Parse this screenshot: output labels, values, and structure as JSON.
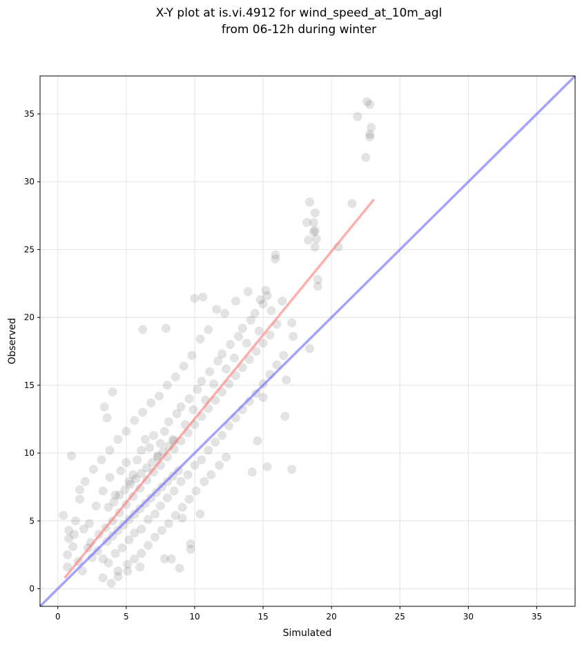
{
  "chart_data": {
    "type": "scatter",
    "title_line1": "X-Y plot at is.vi.4912 for wind_speed_at_10m_agl",
    "title_line2": "from 06-12h during winter",
    "xlabel": "Simulated",
    "ylabel": "Observed",
    "xlim": [
      -1.3,
      37.8
    ],
    "ylim": [
      -1.3,
      37.8
    ],
    "xticks": [
      0,
      5,
      10,
      15,
      20,
      25,
      30,
      35
    ],
    "yticks": [
      0,
      5,
      10,
      15,
      20,
      25,
      30,
      35
    ],
    "xtick_labels": [
      "0",
      "5",
      "10",
      "15",
      "20",
      "25",
      "30",
      "35"
    ],
    "ytick_labels": [
      "0",
      "5",
      "10",
      "15",
      "20",
      "25",
      "30",
      "35"
    ],
    "grid": true,
    "point_color": "#444444",
    "identity_line": {
      "x": [
        -1.3,
        37.8
      ],
      "y": [
        -1.3,
        37.8
      ],
      "color": "#6666ff"
    },
    "fit_line": {
      "x": [
        0.5,
        23.1
      ],
      "y": [
        0.8,
        28.7
      ],
      "color": "#ff7777"
    },
    "points": [
      [
        22.6,
        35.9
      ],
      [
        22.8,
        35.7
      ],
      [
        21.9,
        34.8
      ],
      [
        22.9,
        34.0
      ],
      [
        22.8,
        33.5
      ],
      [
        22.8,
        33.3
      ],
      [
        22.5,
        31.8
      ],
      [
        18.4,
        28.5
      ],
      [
        21.5,
        28.4
      ],
      [
        18.8,
        27.7
      ],
      [
        18.2,
        27.0
      ],
      [
        18.7,
        27.0
      ],
      [
        18.8,
        26.4
      ],
      [
        18.7,
        26.3
      ],
      [
        18.3,
        25.7
      ],
      [
        18.9,
        25.8
      ],
      [
        18.8,
        25.2
      ],
      [
        20.5,
        25.2
      ],
      [
        15.9,
        24.6
      ],
      [
        15.9,
        24.3
      ],
      [
        19.0,
        22.8
      ],
      [
        19.0,
        22.3
      ],
      [
        18.4,
        17.7
      ],
      [
        16.7,
        15.4
      ],
      [
        16.6,
        12.7
      ],
      [
        17.1,
        19.6
      ],
      [
        17.2,
        18.6
      ],
      [
        17.1,
        8.8
      ],
      [
        15.3,
        9.0
      ],
      [
        14.2,
        8.6
      ],
      [
        14.6,
        10.9
      ],
      [
        15.0,
        14.1
      ],
      [
        16.0,
        19.5
      ],
      [
        16.4,
        21.2
      ],
      [
        10.0,
        21.4
      ],
      [
        10.6,
        21.5
      ],
      [
        6.2,
        19.1
      ],
      [
        7.9,
        19.2
      ],
      [
        4.0,
        14.5
      ],
      [
        3.4,
        13.4
      ],
      [
        3.6,
        12.6
      ],
      [
        1.0,
        9.8
      ],
      [
        0.4,
        5.4
      ],
      [
        0.8,
        4.3
      ],
      [
        0.8,
        3.7
      ],
      [
        0.7,
        2.5
      ],
      [
        0.7,
        1.6
      ],
      [
        1.8,
        1.3
      ],
      [
        3.3,
        0.8
      ],
      [
        3.9,
        0.4
      ],
      [
        4.4,
        0.9
      ],
      [
        5.1,
        1.3
      ],
      [
        6.0,
        1.6
      ],
      [
        7.8,
        2.2
      ],
      [
        8.3,
        2.2
      ],
      [
        8.9,
        1.5
      ],
      [
        9.7,
        3.3
      ],
      [
        9.7,
        2.9
      ],
      [
        10.4,
        5.5
      ],
      [
        9.1,
        5.2
      ],
      [
        1.6,
        6.6
      ],
      [
        2.3,
        4.8
      ],
      [
        1.2,
        4.0
      ],
      [
        2.8,
        6.1
      ],
      [
        4.4,
        1.3
      ],
      [
        3.3,
        7.2
      ],
      [
        3.8,
        8.2
      ],
      [
        4.2,
        6.9
      ],
      [
        4.6,
        8.7
      ],
      [
        5.0,
        9.3
      ],
      [
        5.2,
        7.9
      ],
      [
        5.5,
        8.4
      ],
      [
        5.8,
        9.5
      ],
      [
        6.1,
        10.2
      ],
      [
        6.4,
        11.0
      ],
      [
        6.7,
        10.4
      ],
      [
        7.0,
        11.3
      ],
      [
        7.3,
        9.8
      ],
      [
        7.5,
        10.7
      ],
      [
        7.8,
        11.6
      ],
      [
        8.1,
        12.3
      ],
      [
        8.4,
        11.0
      ],
      [
        8.7,
        12.9
      ],
      [
        9.0,
        13.4
      ],
      [
        9.3,
        12.1
      ],
      [
        9.6,
        14.0
      ],
      [
        9.9,
        13.2
      ],
      [
        10.2,
        14.7
      ],
      [
        10.5,
        15.3
      ],
      [
        10.8,
        13.9
      ],
      [
        11.1,
        16.0
      ],
      [
        11.4,
        15.1
      ],
      [
        11.7,
        16.8
      ],
      [
        12.0,
        17.3
      ],
      [
        12.3,
        16.2
      ],
      [
        12.6,
        18.0
      ],
      [
        12.9,
        17.0
      ],
      [
        13.2,
        18.6
      ],
      [
        13.5,
        19.2
      ],
      [
        13.8,
        18.1
      ],
      [
        14.1,
        19.8
      ],
      [
        14.4,
        20.3
      ],
      [
        14.7,
        19.0
      ],
      [
        15.0,
        21.0
      ],
      [
        15.3,
        21.6
      ],
      [
        15.6,
        20.5
      ],
      [
        15.2,
        22.0
      ],
      [
        14.8,
        21.3
      ],
      [
        13.9,
        21.9
      ],
      [
        13.0,
        21.2
      ],
      [
        12.2,
        20.3
      ],
      [
        11.6,
        20.6
      ],
      [
        11.0,
        19.1
      ],
      [
        10.4,
        18.4
      ],
      [
        9.8,
        17.2
      ],
      [
        9.2,
        16.4
      ],
      [
        8.6,
        15.6
      ],
      [
        8.0,
        15.0
      ],
      [
        7.4,
        14.2
      ],
      [
        6.8,
        13.7
      ],
      [
        6.2,
        13.0
      ],
      [
        5.6,
        12.4
      ],
      [
        5.0,
        11.6
      ],
      [
        4.4,
        11.0
      ],
      [
        3.8,
        10.2
      ],
      [
        3.2,
        9.5
      ],
      [
        2.6,
        8.8
      ],
      [
        2.0,
        7.9
      ],
      [
        1.6,
        7.3
      ],
      [
        1.3,
        5.0
      ],
      [
        1.9,
        4.4
      ],
      [
        2.4,
        3.4
      ],
      [
        2.9,
        2.8
      ],
      [
        3.3,
        2.2
      ],
      [
        3.7,
        1.9
      ],
      [
        4.2,
        2.6
      ],
      [
        4.7,
        3.0
      ],
      [
        5.2,
        3.6
      ],
      [
        5.6,
        4.1
      ],
      [
        6.1,
        4.4
      ],
      [
        6.6,
        5.1
      ],
      [
        7.1,
        5.5
      ],
      [
        7.5,
        6.1
      ],
      [
        8.0,
        6.7
      ],
      [
        8.5,
        7.2
      ],
      [
        9.0,
        7.9
      ],
      [
        9.5,
        8.4
      ],
      [
        10.0,
        9.1
      ],
      [
        10.5,
        9.5
      ],
      [
        11.0,
        10.2
      ],
      [
        11.5,
        10.8
      ],
      [
        12.0,
        11.3
      ],
      [
        12.5,
        12.0
      ],
      [
        13.0,
        12.6
      ],
      [
        13.5,
        13.2
      ],
      [
        14.0,
        13.8
      ],
      [
        14.5,
        14.4
      ],
      [
        15.0,
        15.1
      ],
      [
        15.5,
        15.8
      ],
      [
        16.0,
        16.5
      ],
      [
        16.5,
        17.2
      ],
      [
        12.3,
        9.7
      ],
      [
        11.8,
        9.1
      ],
      [
        11.2,
        8.4
      ],
      [
        10.7,
        7.9
      ],
      [
        10.1,
        7.2
      ],
      [
        9.6,
        6.6
      ],
      [
        9.1,
        6.0
      ],
      [
        8.6,
        5.4
      ],
      [
        8.1,
        4.8
      ],
      [
        7.6,
        4.3
      ],
      [
        7.1,
        3.8
      ],
      [
        6.6,
        3.2
      ],
      [
        6.1,
        2.6
      ],
      [
        5.6,
        2.2
      ],
      [
        5.1,
        1.8
      ],
      [
        3.0,
        4.0
      ],
      [
        3.5,
        4.5
      ],
      [
        4.0,
        5.0
      ],
      [
        4.5,
        5.6
      ],
      [
        5.0,
        6.2
      ],
      [
        5.5,
        6.8
      ],
      [
        6.0,
        7.4
      ],
      [
        6.5,
        8.0
      ],
      [
        7.0,
        8.6
      ],
      [
        7.5,
        9.1
      ],
      [
        8.0,
        9.7
      ],
      [
        8.5,
        10.3
      ],
      [
        9.0,
        10.9
      ],
      [
        9.5,
        11.5
      ],
      [
        10.0,
        12.1
      ],
      [
        10.5,
        12.7
      ],
      [
        11.0,
        13.3
      ],
      [
        11.5,
        13.9
      ],
      [
        12.0,
        14.5
      ],
      [
        12.5,
        15.1
      ],
      [
        13.0,
        15.7
      ],
      [
        13.5,
        16.3
      ],
      [
        14.0,
        16.9
      ],
      [
        14.5,
        17.5
      ],
      [
        15.0,
        18.1
      ],
      [
        15.5,
        18.7
      ],
      [
        3.7,
        6.0
      ],
      [
        4.1,
        6.4
      ],
      [
        4.5,
        6.9
      ],
      [
        4.9,
        7.3
      ],
      [
        5.3,
        7.7
      ],
      [
        5.7,
        8.1
      ],
      [
        6.1,
        8.5
      ],
      [
        6.5,
        8.9
      ],
      [
        6.9,
        9.3
      ],
      [
        7.3,
        9.7
      ],
      [
        7.7,
        10.1
      ],
      [
        8.1,
        10.5
      ],
      [
        8.5,
        10.9
      ],
      [
        3.6,
        3.5
      ],
      [
        4.0,
        3.9
      ],
      [
        4.4,
        4.3
      ],
      [
        4.8,
        4.7
      ],
      [
        5.2,
        5.1
      ],
      [
        5.6,
        5.5
      ],
      [
        6.0,
        5.9
      ],
      [
        6.4,
        6.3
      ],
      [
        6.8,
        6.7
      ],
      [
        7.2,
        7.1
      ],
      [
        7.6,
        7.5
      ],
      [
        8.0,
        7.9
      ],
      [
        8.4,
        8.3
      ],
      [
        8.8,
        8.7
      ],
      [
        2.5,
        2.3
      ],
      [
        2.2,
        3.0
      ],
      [
        1.5,
        2.0
      ],
      [
        1.1,
        3.1
      ]
    ]
  }
}
